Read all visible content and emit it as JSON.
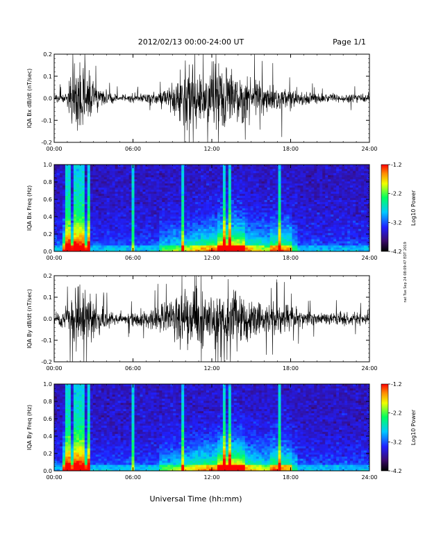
{
  "header": {
    "title": "2012/02/13  00:00-24:00 UT",
    "page": "Page 1/1"
  },
  "footer": {
    "xlabel": "Universal Time (hh:mm)",
    "side_note": "nat Tue Sep 24 08:09:47 EDT 2019"
  },
  "chart_data": [
    {
      "type": "line",
      "ylabel": "IQA Bx dB/dt (nT/sec)",
      "ylim": [
        -0.2,
        0.2
      ],
      "yticks": [
        "0.2",
        "0.1",
        "0.0",
        "-0.1",
        "-0.2"
      ],
      "xticks": [
        "00:00",
        "06:00",
        "12:00",
        "18:00",
        "24:00"
      ],
      "xlim_hours": [
        0,
        24
      ],
      "series": [
        {
          "color": "#000000",
          "x_hours": [
            0,
            1,
            1.5,
            2,
            2.5,
            3,
            4,
            5,
            6,
            7,
            8,
            9,
            9.5,
            10,
            10.5,
            11,
            12,
            13,
            14,
            15,
            16,
            17,
            18,
            19,
            20,
            21,
            22,
            23,
            24
          ],
          "envelope": [
            0.02,
            0.04,
            0.2,
            0.2,
            0.2,
            0.1,
            0.05,
            0.02,
            0.03,
            0.03,
            0.06,
            0.08,
            0.15,
            0.2,
            0.2,
            0.16,
            0.2,
            0.2,
            0.16,
            0.12,
            0.1,
            0.09,
            0.06,
            0.04,
            0.03,
            0.03,
            0.025,
            0.03,
            0.02
          ]
        }
      ]
    },
    {
      "type": "heatmap",
      "ylabel": "IQA Bx Freq (Hz)",
      "ylim": [
        0.0,
        1.0
      ],
      "yticks": [
        "1.0",
        "0.8",
        "0.6",
        "0.4",
        "0.2",
        "0.0"
      ],
      "xticks": [
        "00:00",
        "06:00",
        "12:00",
        "18:00",
        "24:00"
      ],
      "xlim_hours": [
        0,
        24
      ],
      "colorbar": {
        "label": "Log10 Power",
        "ticks": [
          "-1.2",
          "-2.2",
          "-3.2",
          "-4.2"
        ],
        "range": [
          -4.2,
          -1.2
        ]
      }
    },
    {
      "type": "line",
      "ylabel": "IQA By dB/dt (nT/sec)",
      "ylim": [
        -0.2,
        0.2
      ],
      "yticks": [
        "0.2",
        "0.1",
        "0.0",
        "-0.1",
        "-0.2"
      ],
      "xticks": [
        "00:00",
        "06:00",
        "12:00",
        "18:00",
        "24:00"
      ],
      "xlim_hours": [
        0,
        24
      ],
      "series": [
        {
          "color": "#000000",
          "x_hours": [
            0,
            1,
            1.5,
            2,
            2.5,
            3,
            4,
            5,
            6,
            7,
            8,
            9,
            9.5,
            10,
            10.5,
            11,
            12,
            13,
            14,
            15,
            16,
            17,
            18,
            19,
            20,
            21,
            22,
            23,
            24
          ],
          "envelope": [
            0.03,
            0.08,
            0.2,
            0.2,
            0.18,
            0.1,
            0.06,
            0.03,
            0.05,
            0.05,
            0.08,
            0.12,
            0.2,
            0.2,
            0.2,
            0.16,
            0.16,
            0.2,
            0.14,
            0.12,
            0.1,
            0.09,
            0.07,
            0.05,
            0.04,
            0.04,
            0.05,
            0.04,
            0.03
          ]
        }
      ]
    },
    {
      "type": "heatmap",
      "ylabel": "IQA By Freq (Hz)",
      "ylim": [
        0.0,
        1.0
      ],
      "yticks": [
        "1.0",
        "0.8",
        "0.6",
        "0.4",
        "0.2",
        "0.0"
      ],
      "xticks": [
        "00:00",
        "06:00",
        "12:00",
        "18:00",
        "24:00"
      ],
      "xlim_hours": [
        0,
        24
      ],
      "colorbar": {
        "label": "Log10 Power",
        "ticks": [
          "-1.2",
          "-2.2",
          "-3.2",
          "-4.2"
        ],
        "range": [
          -4.2,
          -1.2
        ]
      }
    }
  ]
}
